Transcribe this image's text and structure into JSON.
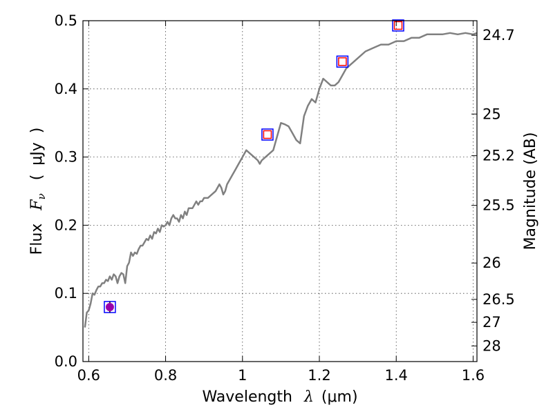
{
  "chart_data": {
    "type": "line",
    "xlabel_text": "Wavelength",
    "xlabel_symbol": "λ",
    "xlabel_unit": "μm",
    "ylabel_text": "Flux",
    "ylabel_symbol": "F",
    "ylabel_subscript": "ν",
    "ylabel_unit": "μJy",
    "y2label": "Magnitude (AB)",
    "xlim": [
      0.585,
      1.61
    ],
    "ylim": [
      0.0,
      0.5
    ],
    "grid": true,
    "x_ticks": [
      0.6,
      0.8,
      1.0,
      1.2,
      1.4,
      1.6
    ],
    "x_tick_labels": [
      "0.6",
      "0.8",
      "1",
      "1.2",
      "1.4",
      "1.6"
    ],
    "y_ticks": [
      0.0,
      0.1,
      0.2,
      0.3,
      0.4,
      0.5
    ],
    "y_tick_labels": [
      "0.0",
      "0.1",
      "0.2",
      "0.3",
      "0.4",
      "0.5"
    ],
    "mag_ticks": [
      {
        "label": "24.7",
        "mag": 24.7
      },
      {
        "label": "25",
        "mag": 25.0
      },
      {
        "label": "25.2",
        "mag": 25.2
      },
      {
        "label": "25.5",
        "mag": 25.5
      },
      {
        "label": "26",
        "mag": 26.0
      },
      {
        "label": "26.5",
        "mag": 26.5
      },
      {
        "label": "27",
        "mag": 27.0
      },
      {
        "label": "28",
        "mag": 28.0
      }
    ],
    "series": [
      {
        "style": "line",
        "color": "#808080",
        "x": [
          0.59,
          0.595,
          0.6,
          0.605,
          0.61,
          0.615,
          0.62,
          0.625,
          0.63,
          0.635,
          0.64,
          0.645,
          0.65,
          0.655,
          0.66,
          0.665,
          0.67,
          0.675,
          0.68,
          0.685,
          0.69,
          0.695,
          0.7,
          0.705,
          0.71,
          0.715,
          0.72,
          0.725,
          0.73,
          0.735,
          0.74,
          0.745,
          0.75,
          0.755,
          0.76,
          0.765,
          0.77,
          0.775,
          0.78,
          0.785,
          0.79,
          0.795,
          0.8,
          0.805,
          0.81,
          0.815,
          0.82,
          0.825,
          0.83,
          0.835,
          0.84,
          0.845,
          0.85,
          0.855,
          0.86,
          0.87,
          0.88,
          0.885,
          0.89,
          0.895,
          0.9,
          0.91,
          0.92,
          0.93,
          0.935,
          0.94,
          0.945,
          0.95,
          0.955,
          0.96,
          0.97,
          0.98,
          0.99,
          1.0,
          1.01,
          1.02,
          1.03,
          1.04,
          1.045,
          1.05,
          1.06,
          1.08,
          1.09,
          1.1,
          1.11,
          1.12,
          1.13,
          1.14,
          1.15,
          1.16,
          1.17,
          1.18,
          1.19,
          1.2,
          1.21,
          1.22,
          1.23,
          1.24,
          1.25,
          1.26,
          1.27,
          1.28,
          1.29,
          1.3,
          1.32,
          1.34,
          1.36,
          1.38,
          1.4,
          1.42,
          1.44,
          1.46,
          1.48,
          1.5,
          1.52,
          1.54,
          1.56,
          1.58,
          1.6,
          1.61
        ],
        "y": [
          0.05,
          0.072,
          0.075,
          0.085,
          0.1,
          0.098,
          0.105,
          0.11,
          0.11,
          0.115,
          0.115,
          0.12,
          0.118,
          0.125,
          0.12,
          0.128,
          0.125,
          0.115,
          0.125,
          0.13,
          0.128,
          0.115,
          0.14,
          0.145,
          0.16,
          0.155,
          0.16,
          0.158,
          0.165,
          0.17,
          0.17,
          0.175,
          0.18,
          0.178,
          0.185,
          0.18,
          0.19,
          0.188,
          0.195,
          0.19,
          0.2,
          0.198,
          0.2,
          0.205,
          0.2,
          0.21,
          0.215,
          0.21,
          0.21,
          0.205,
          0.215,
          0.21,
          0.22,
          0.215,
          0.225,
          0.225,
          0.235,
          0.23,
          0.235,
          0.235,
          0.24,
          0.24,
          0.245,
          0.25,
          0.255,
          0.26,
          0.255,
          0.245,
          0.25,
          0.26,
          0.27,
          0.28,
          0.29,
          0.3,
          0.31,
          0.305,
          0.3,
          0.295,
          0.29,
          0.295,
          0.3,
          0.31,
          0.33,
          0.35,
          0.348,
          0.345,
          0.335,
          0.325,
          0.32,
          0.36,
          0.375,
          0.385,
          0.38,
          0.4,
          0.415,
          0.41,
          0.405,
          0.405,
          0.41,
          0.42,
          0.43,
          0.435,
          0.44,
          0.445,
          0.455,
          0.46,
          0.465,
          0.465,
          0.47,
          0.47,
          0.475,
          0.475,
          0.48,
          0.48,
          0.48,
          0.482,
          0.48,
          0.482,
          0.48,
          0.482
        ]
      },
      {
        "style": "markers",
        "marker": "square",
        "color": "#0000ff",
        "x": [
          0.655,
          1.065,
          1.26,
          1.405
        ],
        "y": [
          0.08,
          0.333,
          0.44,
          0.493
        ]
      },
      {
        "style": "markers",
        "marker": "square",
        "color": "#ff0000",
        "x": [
          1.065,
          1.26,
          1.405
        ],
        "y": [
          0.333,
          0.44,
          0.493
        ]
      },
      {
        "style": "markers",
        "marker": "circle",
        "color": "#9900aa",
        "x": [
          0.655
        ],
        "y": [
          0.08
        ],
        "yerr": [
          0.008
        ]
      }
    ]
  }
}
